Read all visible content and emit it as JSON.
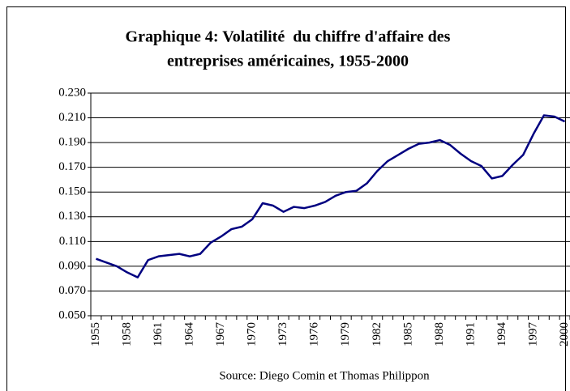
{
  "chart_data": {
    "type": "line",
    "title": [
      "Graphique 4: Volatilité  du chiffre d'affaire des",
      "entreprises américaines, 1955-2000"
    ],
    "source": "Source: Diego Comin et Thomas Philippon",
    "categories": [
      "1955",
      null,
      null,
      "1958",
      null,
      null,
      "1961",
      null,
      null,
      "1964",
      null,
      null,
      "1967",
      null,
      null,
      "1970",
      null,
      null,
      "1973",
      null,
      null,
      "1976",
      null,
      null,
      "1979",
      null,
      null,
      "1982",
      null,
      null,
      "1985",
      null,
      null,
      "1988",
      null,
      null,
      "1991",
      null,
      null,
      "1994",
      null,
      null,
      "1997",
      null,
      null,
      "2000"
    ],
    "series": [
      {
        "color": "#000080",
        "values": [
          0.096,
          0.093,
          0.09,
          0.085,
          0.081,
          0.095,
          0.098,
          0.099,
          0.1,
          0.098,
          0.1,
          0.109,
          0.114,
          0.12,
          0.122,
          0.128,
          0.141,
          0.139,
          0.134,
          0.138,
          0.137,
          0.139,
          0.142,
          0.147,
          0.15,
          0.151,
          0.157,
          0.167,
          0.175,
          0.18,
          0.185,
          0.189,
          0.19,
          0.192,
          0.188,
          0.181,
          0.175,
          0.171,
          0.161,
          0.163,
          0.172,
          0.18,
          0.197,
          0.212,
          0.211,
          0.207
        ]
      }
    ],
    "ylim": [
      0.05,
      0.23
    ],
    "yticks": [
      {
        "value": 0.05,
        "label": "0.050"
      },
      {
        "value": 0.07,
        "label": "0.070"
      },
      {
        "value": 0.09,
        "label": "0.090"
      },
      {
        "value": 0.11,
        "label": "0.110"
      },
      {
        "value": 0.13,
        "label": "0.130"
      },
      {
        "value": 0.15,
        "label": "0.150"
      },
      {
        "value": 0.17,
        "label": "0.170"
      },
      {
        "value": 0.19,
        "label": "0.190"
      },
      {
        "value": 0.21,
        "label": "0.210"
      },
      {
        "value": 0.23,
        "label": "0.230"
      }
    ],
    "grid": true
  }
}
